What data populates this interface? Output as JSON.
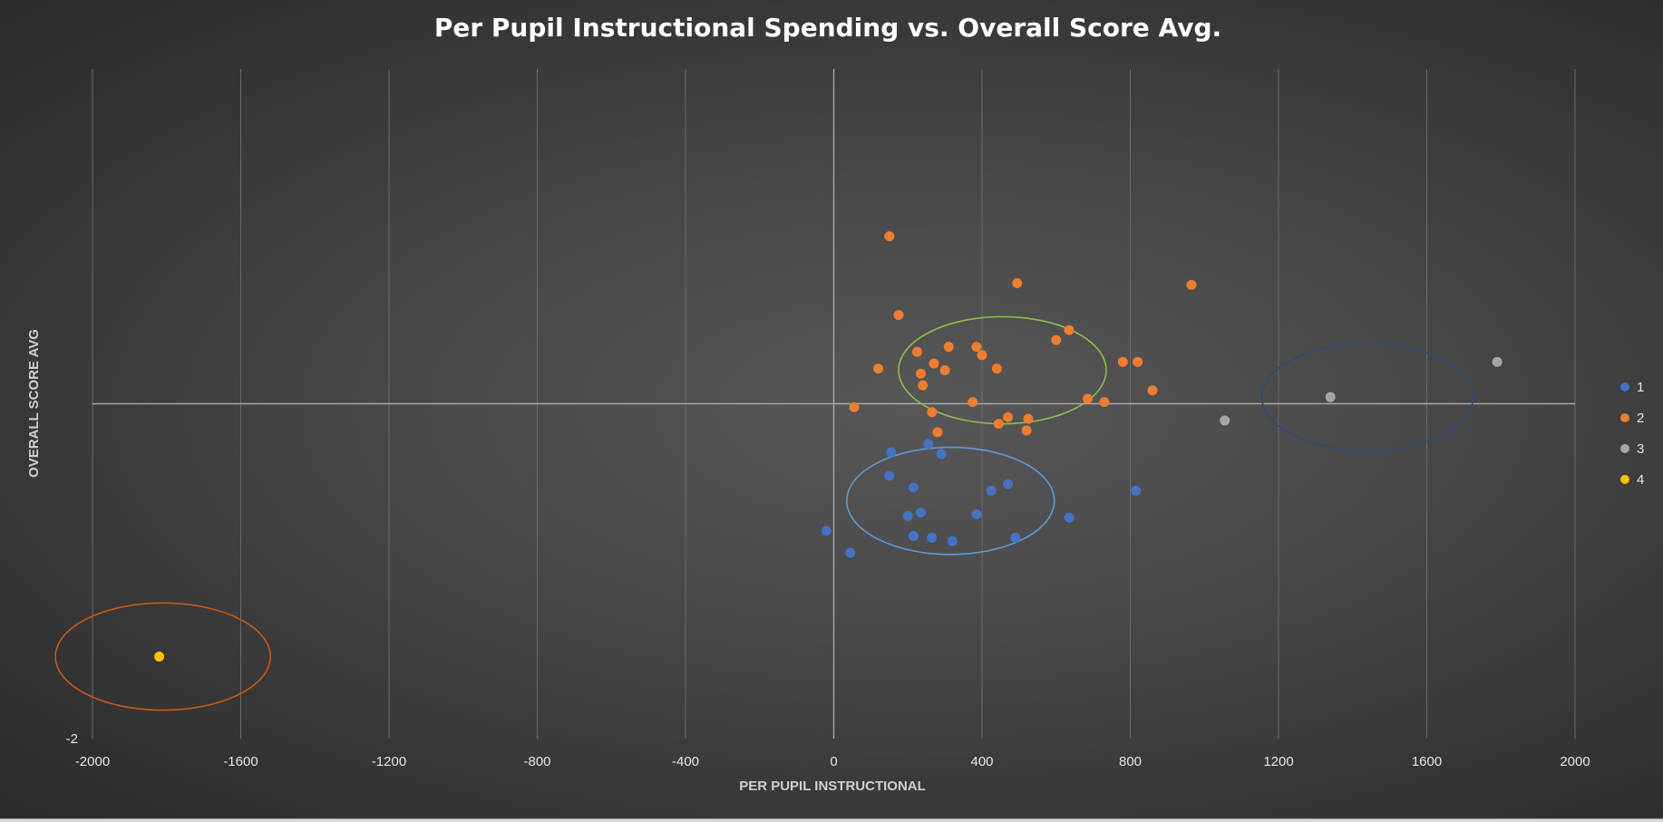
{
  "chart_data": {
    "type": "scatter",
    "title": "Per Pupil Instructional Spending vs. Overall Score Avg.",
    "xlabel": "PER PUPIL INSTRUCTIONAL",
    "ylabel": "OVERALL SCORE AVG",
    "xlim": [
      -2000,
      2000
    ],
    "ylim": [
      -2,
      2
    ],
    "x_ticks": [
      "-2000",
      "-1600",
      "-1200",
      "-800",
      "-400",
      "0",
      "400",
      "800",
      "1200",
      "1600",
      "2000"
    ],
    "y_ticks": [
      "-2"
    ],
    "grid": "vertical",
    "legend_position": "right",
    "series": [
      {
        "name": "1",
        "color": "#4472c4",
        "points": [
          [
            -20,
            -0.76
          ],
          [
            45,
            -0.89
          ],
          [
            155,
            -0.29
          ],
          [
            150,
            -0.43
          ],
          [
            215,
            -0.5
          ],
          [
            200,
            -0.67
          ],
          [
            235,
            -0.65
          ],
          [
            215,
            -0.79
          ],
          [
            265,
            -0.8
          ],
          [
            255,
            -0.24
          ],
          [
            290,
            -0.3
          ],
          [
            320,
            -0.82
          ],
          [
            385,
            -0.66
          ],
          [
            425,
            -0.52
          ],
          [
            470,
            -0.48
          ],
          [
            490,
            -0.8
          ],
          [
            635,
            -0.68
          ],
          [
            815,
            -0.52
          ]
        ]
      },
      {
        "name": "2",
        "color": "#ed7d31",
        "points": [
          [
            150,
            1.0
          ],
          [
            175,
            0.53
          ],
          [
            120,
            0.21
          ],
          [
            225,
            0.31
          ],
          [
            235,
            0.18
          ],
          [
            240,
            0.11
          ],
          [
            270,
            0.24
          ],
          [
            300,
            0.2
          ],
          [
            310,
            0.34
          ],
          [
            265,
            -0.05
          ],
          [
            280,
            -0.17
          ],
          [
            55,
            -0.02
          ],
          [
            385,
            0.34
          ],
          [
            400,
            0.29
          ],
          [
            375,
            0.01
          ],
          [
            440,
            0.21
          ],
          [
            445,
            -0.12
          ],
          [
            470,
            -0.08
          ],
          [
            495,
            0.72
          ],
          [
            520,
            -0.16
          ],
          [
            525,
            -0.09
          ],
          [
            600,
            0.38
          ],
          [
            635,
            0.44
          ],
          [
            685,
            0.03
          ],
          [
            730,
            0.01
          ],
          [
            780,
            0.25
          ],
          [
            820,
            0.25
          ],
          [
            860,
            0.08
          ],
          [
            965,
            0.71
          ]
        ]
      },
      {
        "name": "3",
        "color": "#a5a5a5",
        "points": [
          [
            1055,
            -0.1
          ],
          [
            1340,
            0.04
          ],
          [
            1790,
            0.25
          ]
        ]
      },
      {
        "name": "4",
        "color": "#ffc000",
        "points": [
          [
            -1820,
            -1.51
          ]
        ]
      }
    ],
    "cluster_ellipses": [
      {
        "cx": 455,
        "cy": 0.2,
        "rx": 280,
        "ry": 0.32,
        "color": "#8bbf4a"
      },
      {
        "cx": 315,
        "cy": -0.58,
        "rx": 280,
        "ry": 0.32,
        "color": "#5b9bd5"
      },
      {
        "cx": 1440,
        "cy": 0.04,
        "rx": 285,
        "ry": 0.32,
        "color": "#2f4a7a"
      },
      {
        "cx": -1810,
        "cy": -1.51,
        "rx": 290,
        "ry": 0.32,
        "color": "#c55a11"
      }
    ]
  }
}
